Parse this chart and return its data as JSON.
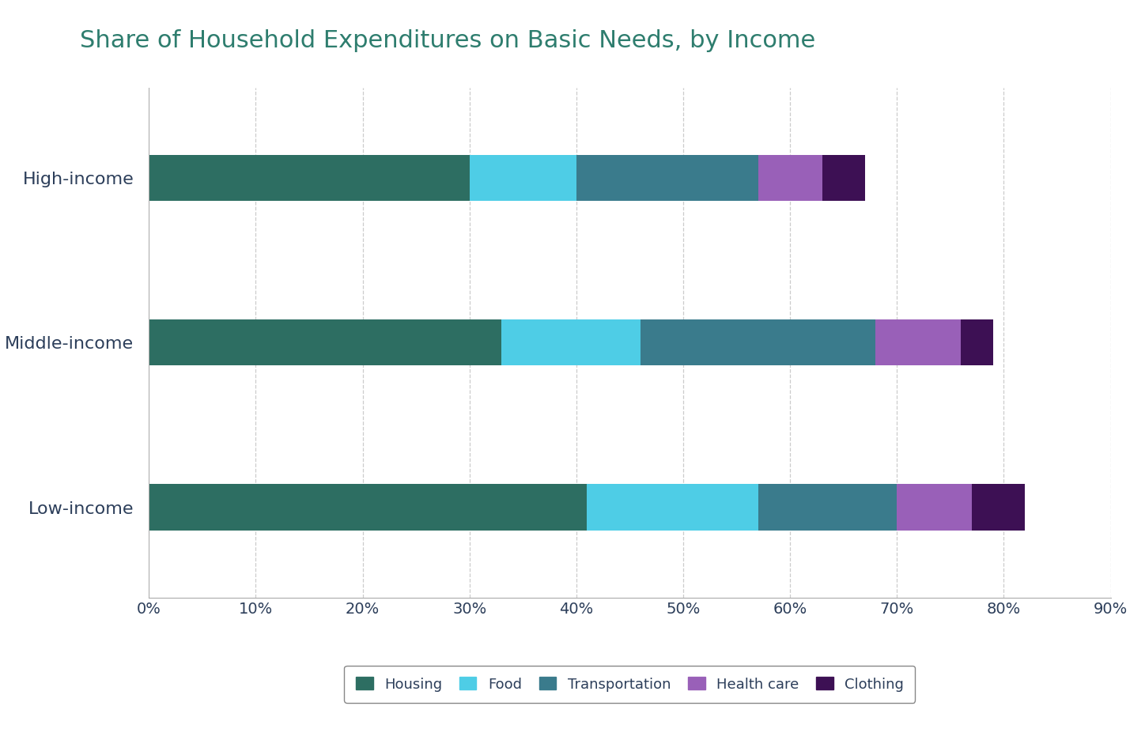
{
  "title": "Share of Household Expenditures on Basic Needs, by Income",
  "categories": [
    "Low-income",
    "Middle-income",
    "High-income"
  ],
  "segments": [
    "Housing",
    "Food",
    "Transportation",
    "Health care",
    "Clothing"
  ],
  "colors": [
    "#2d6e62",
    "#4ecde6",
    "#3a7b8c",
    "#9960b8",
    "#3d1054"
  ],
  "values": {
    "High-income": [
      30,
      10,
      17,
      6,
      4
    ],
    "Middle-income": [
      33,
      13,
      22,
      8,
      3
    ],
    "Low-income": [
      41,
      16,
      13,
      7,
      5
    ]
  },
  "xlim": [
    0,
    90
  ],
  "xticks": [
    0,
    10,
    20,
    30,
    40,
    50,
    60,
    70,
    80,
    90
  ],
  "background_color": "#ffffff",
  "title_color": "#2e7d6e",
  "label_color": "#2c3e5a",
  "tick_color": "#2c3e5a",
  "grid_color": "#cccccc",
  "title_fontsize": 22,
  "label_fontsize": 16,
  "tick_fontsize": 14,
  "bar_height": 0.28,
  "legend_fontsize": 13
}
